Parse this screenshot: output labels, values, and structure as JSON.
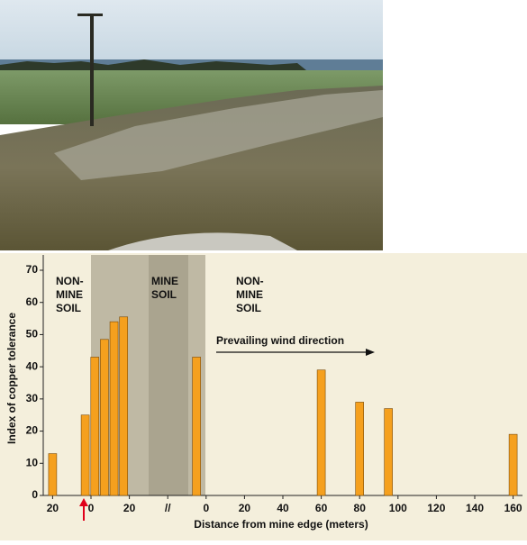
{
  "chart_data": {
    "type": "bar",
    "title_annotations": {
      "left_region": [
        "NON-",
        "MINE",
        "SOIL"
      ],
      "mine_region": [
        "MINE",
        "SOIL"
      ],
      "right_region": [
        "NON-",
        "MINE",
        "SOIL"
      ],
      "wind": "Prevailing wind direction"
    },
    "xlabel": "Distance from mine edge (meters)",
    "ylabel": "Index of copper tolerance",
    "x": [
      -20,
      -3,
      2,
      7,
      12,
      17,
      55,
      120,
      140,
      155,
      220
    ],
    "values": [
      13,
      25,
      43,
      48.5,
      54,
      55.5,
      43,
      39,
      29,
      27,
      19
    ],
    "color": "#f5a01e",
    "xlim": [
      -25,
      225
    ],
    "xticks": [
      {
        "value": -20,
        "label": "20"
      },
      {
        "value": 0,
        "label": "0"
      },
      {
        "value": 20,
        "label": "20"
      },
      {
        "value": 40,
        "label": "//"
      },
      {
        "value": 60,
        "label": "0"
      },
      {
        "value": 80,
        "label": "20"
      },
      {
        "value": 100,
        "label": "40"
      },
      {
        "value": 120,
        "label": "60"
      },
      {
        "value": 140,
        "label": "80"
      },
      {
        "value": 160,
        "label": "100"
      },
      {
        "value": 180,
        "label": "120"
      },
      {
        "value": 200,
        "label": "140"
      },
      {
        "value": 220,
        "label": "160"
      }
    ],
    "ylim": [
      0,
      70
    ],
    "yticks": [
      0,
      10,
      20,
      30,
      40,
      50,
      60,
      70
    ]
  }
}
